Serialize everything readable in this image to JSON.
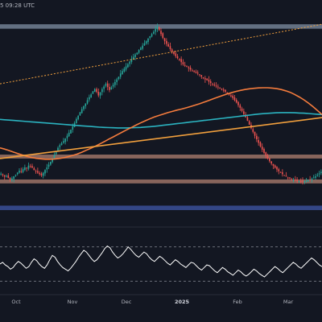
{
  "header": {
    "timestamp": "5 09:28 UTC"
  },
  "colors": {
    "background": "#131722",
    "candle_up": "#26a69a",
    "candle_down": "#ef5350",
    "ma_short": "#f57c3d",
    "ma_long": "#2bb3c0",
    "trendline": "#f2a03d",
    "resistance_zone": "#7f8fa3",
    "support_zone": "#b08070",
    "demand_zone": "#3f57a8",
    "rsi_line": "#ffffff"
  },
  "chart_data": {
    "type": "candlestick",
    "x_ticks": [
      {
        "label": "Oct",
        "bold": false
      },
      {
        "label": "Nov",
        "bold": false
      },
      {
        "label": "Dec",
        "bold": false
      },
      {
        "label": "2025",
        "bold": true
      },
      {
        "label": "Feb",
        "bold": false
      },
      {
        "label": "Mar",
        "bold": false
      }
    ],
    "price_close": [
      0.555,
      0.546,
      0.538,
      0.542,
      0.53,
      0.522,
      0.528,
      0.54,
      0.548,
      0.56,
      0.572,
      0.566,
      0.58,
      0.59,
      0.585,
      0.6,
      0.595,
      0.588,
      0.575,
      0.568,
      0.56,
      0.552,
      0.545,
      0.56,
      0.575,
      0.59,
      0.605,
      0.622,
      0.64,
      0.66,
      0.68,
      0.7,
      0.715,
      0.725,
      0.738,
      0.752,
      0.768,
      0.785,
      0.802,
      0.82,
      0.84,
      0.862,
      0.88,
      0.9,
      0.918,
      0.935,
      0.95,
      0.968,
      0.985,
      1.0,
      1.018,
      1.03,
      1.015,
      0.995,
      1.012,
      1.03,
      1.045,
      1.06,
      1.042,
      1.025,
      1.04,
      1.055,
      1.07,
      1.085,
      1.1,
      1.118,
      1.132,
      1.145,
      1.158,
      1.17,
      1.185,
      1.2,
      1.212,
      1.225,
      1.235,
      1.25,
      1.262,
      1.275,
      1.288,
      1.3,
      1.315,
      1.328,
      1.34,
      1.352,
      1.368,
      1.38,
      1.362,
      1.34,
      1.318,
      1.3,
      1.285,
      1.27,
      1.255,
      1.24,
      1.228,
      1.215,
      1.205,
      1.195,
      1.182,
      1.17,
      1.162,
      1.155,
      1.148,
      1.14,
      1.132,
      1.128,
      1.122,
      1.118,
      1.11,
      1.1,
      1.092,
      1.085,
      1.08,
      1.072,
      1.065,
      1.06,
      1.052,
      1.048,
      1.042,
      1.035,
      1.028,
      1.022,
      1.015,
      1.008,
      1.0,
      0.99,
      0.98,
      0.968,
      0.955,
      0.94,
      0.925,
      0.908,
      0.89,
      0.872,
      0.852,
      0.83,
      0.81,
      0.79,
      0.768,
      0.748,
      0.728,
      0.708,
      0.69,
      0.672,
      0.655,
      0.64,
      0.625,
      0.612,
      0.6,
      0.588,
      0.578,
      0.568,
      0.56,
      0.552,
      0.545,
      0.538,
      0.532,
      0.528,
      0.524,
      0.52,
      0.518,
      0.515,
      0.513,
      0.512,
      0.512,
      0.513,
      0.515,
      0.518,
      0.522,
      0.527,
      0.533,
      0.54,
      0.548,
      0.556,
      0.565
    ],
    "ma_short_values": [
      0.7,
      0.693,
      0.685,
      0.676,
      0.667,
      0.659,
      0.652,
      0.646,
      0.641,
      0.638,
      0.636,
      0.636,
      0.637,
      0.64,
      0.644,
      0.65,
      0.657,
      0.665,
      0.675,
      0.686,
      0.697,
      0.709,
      0.722,
      0.735,
      0.749,
      0.762,
      0.776,
      0.789,
      0.802,
      0.815,
      0.828,
      0.84,
      0.852,
      0.863,
      0.873,
      0.882,
      0.89,
      0.898,
      0.905,
      0.912,
      0.918,
      0.925,
      0.932,
      0.94,
      0.948,
      0.957,
      0.966,
      0.976,
      0.985,
      0.994,
      1.002,
      1.01,
      1.017,
      1.023,
      1.028,
      1.032,
      1.035,
      1.037,
      1.038,
      1.038,
      1.036,
      1.033,
      1.028,
      1.021,
      1.012,
      1.0,
      0.986,
      0.97,
      0.952,
      0.932,
      0.91,
      0.887
    ],
    "ma_long_values": [
      0.86,
      0.858,
      0.856,
      0.854,
      0.852,
      0.85,
      0.848,
      0.846,
      0.844,
      0.842,
      0.84,
      0.838,
      0.836,
      0.834,
      0.832,
      0.83,
      0.828,
      0.826,
      0.824,
      0.822,
      0.82,
      0.818,
      0.816,
      0.815,
      0.814,
      0.813,
      0.812,
      0.812,
      0.812,
      0.813,
      0.814,
      0.815,
      0.817,
      0.819,
      0.821,
      0.824,
      0.827,
      0.83,
      0.833,
      0.836,
      0.839,
      0.842,
      0.845,
      0.848,
      0.851,
      0.854,
      0.857,
      0.86,
      0.863,
      0.866,
      0.869,
      0.872,
      0.875,
      0.878,
      0.881,
      0.884,
      0.887,
      0.89,
      0.892,
      0.894,
      0.896,
      0.897,
      0.898,
      0.898,
      0.898,
      0.897,
      0.896,
      0.895,
      0.893,
      0.891,
      0.889,
      0.887
    ],
    "zones": [
      {
        "name": "resistance",
        "low": 1.37,
        "high": 1.395
      },
      {
        "name": "support_upper",
        "low": 0.64,
        "high": 0.662
      },
      {
        "name": "support_lower",
        "low": 0.5,
        "high": 0.522
      },
      {
        "name": "demand",
        "low": 0.35,
        "high": 0.375
      }
    ],
    "trendline": {
      "start": 0.64,
      "end": 0.87
    },
    "dotted_trendline": {
      "start": 1.06,
      "end": 1.395
    },
    "rsi_values": [
      50,
      52,
      49,
      47,
      44,
      46,
      50,
      53,
      51,
      48,
      45,
      47,
      52,
      56,
      54,
      50,
      47,
      45,
      49,
      55,
      60,
      58,
      53,
      49,
      46,
      44,
      42,
      45,
      49,
      53,
      58,
      62,
      66,
      64,
      60,
      56,
      53,
      55,
      59,
      63,
      68,
      71,
      69,
      64,
      60,
      57,
      59,
      62,
      66,
      70,
      67,
      63,
      60,
      58,
      61,
      64,
      62,
      58,
      55,
      53,
      56,
      59,
      57,
      54,
      51,
      49,
      52,
      55,
      53,
      50,
      48,
      46,
      49,
      52,
      51,
      48,
      45,
      43,
      46,
      49,
      48,
      45,
      42,
      40,
      43,
      46,
      44,
      41,
      39,
      37,
      40,
      43,
      41,
      38,
      36,
      38,
      41,
      44,
      42,
      39,
      37,
      35,
      38,
      41,
      44,
      47,
      45,
      42,
      40,
      43,
      46,
      49,
      52,
      50,
      47,
      45,
      48,
      51,
      54,
      57,
      55,
      52,
      49,
      47
    ],
    "rsi_levels": [
      70,
      30
    ],
    "ylim": [
      0.3,
      1.45
    ]
  }
}
